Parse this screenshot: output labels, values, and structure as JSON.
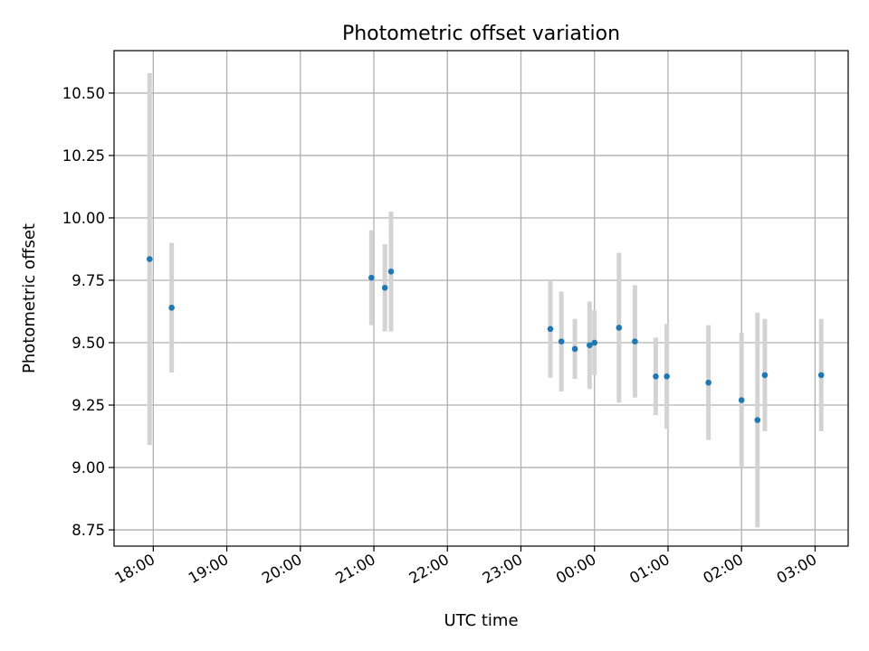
{
  "chart_data": {
    "type": "scatter",
    "title": "Photometric offset variation",
    "xlabel": "UTC time",
    "ylabel": "Photometric offset",
    "x_axis_kind": "time",
    "xlim": [
      "17:28",
      "03:27"
    ],
    "ylim": [
      8.685,
      10.67
    ],
    "grid": true,
    "legend": "none",
    "x_ticks": [
      "18:00",
      "19:00",
      "20:00",
      "21:00",
      "22:00",
      "23:00",
      "00:00",
      "01:00",
      "02:00",
      "03:00"
    ],
    "y_ticks": [
      "8.75",
      "9.00",
      "9.25",
      "9.50",
      "9.75",
      "10.00",
      "10.25",
      "10.50"
    ],
    "colors": {
      "points": "#1f77b4",
      "error_bars": "#d3d3d3"
    },
    "points": [
      {
        "x": "17:57",
        "y": 9.835,
        "yerr": 0.745
      },
      {
        "x": "18:15",
        "y": 9.64,
        "yerr": 0.26
      },
      {
        "x": "20:58",
        "y": 9.76,
        "yerr": 0.19
      },
      {
        "x": "21:09",
        "y": 9.72,
        "yerr": 0.175
      },
      {
        "x": "21:14",
        "y": 9.785,
        "yerr": 0.24
      },
      {
        "x": "23:24",
        "y": 9.555,
        "yerr": 0.195
      },
      {
        "x": "23:33",
        "y": 9.505,
        "yerr": 0.2
      },
      {
        "x": "23:44",
        "y": 9.475,
        "yerr": 0.12
      },
      {
        "x": "23:56",
        "y": 9.49,
        "yerr": 0.175
      },
      {
        "x": "00:00",
        "y": 9.5,
        "yerr": 0.13
      },
      {
        "x": "00:20",
        "y": 9.56,
        "yerr": 0.3
      },
      {
        "x": "00:33",
        "y": 9.505,
        "yerr": 0.225
      },
      {
        "x": "00:50",
        "y": 9.365,
        "yerr": 0.155
      },
      {
        "x": "00:59",
        "y": 9.365,
        "yerr": 0.21
      },
      {
        "x": "01:33",
        "y": 9.34,
        "yerr": 0.23
      },
      {
        "x": "02:00",
        "y": 9.27,
        "yerr": 0.27
      },
      {
        "x": "02:13",
        "y": 9.19,
        "yerr": 0.43
      },
      {
        "x": "02:19",
        "y": 9.37,
        "yerr": 0.225
      },
      {
        "x": "03:05",
        "y": 9.37,
        "yerr": 0.225
      }
    ]
  }
}
